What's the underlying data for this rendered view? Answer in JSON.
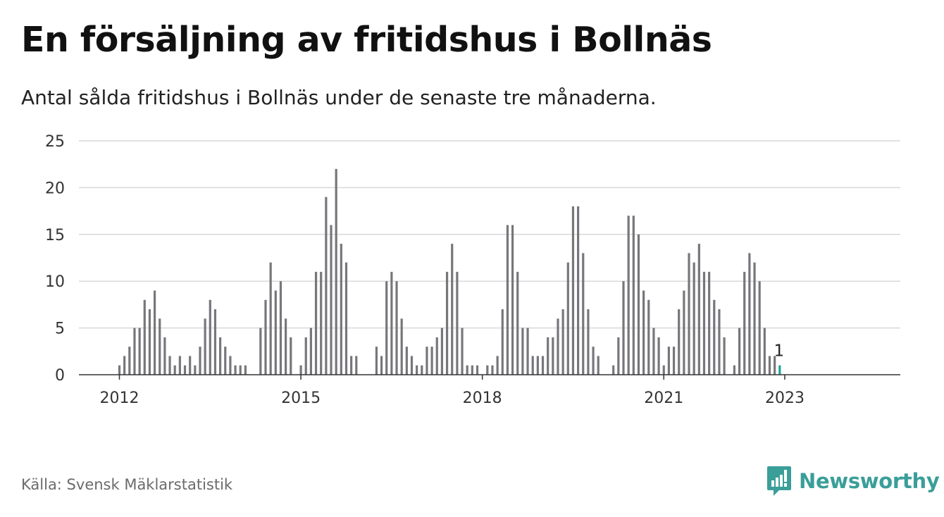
{
  "title": "En försäljning av fritidshus i Bollnäs",
  "subtitle": "Antal sålda fritidshus i Bollnäs under de senaste tre månaderna.",
  "source": "Källa: Svensk Mäklarstatistik",
  "brand": {
    "name": "Newsworthy",
    "icon": "newsworthy-logo-icon",
    "color": "#3a9e99"
  },
  "colors": {
    "bar": "#77767b",
    "highlight": "#1aa39b",
    "grid": "#d9d9d9",
    "axis": "#333333"
  },
  "chart_data": {
    "type": "bar",
    "x_start": "2012-01",
    "frequency": "monthly",
    "ylim": [
      0,
      25
    ],
    "yticks": [
      0,
      5,
      10,
      15,
      20,
      25
    ],
    "xticks": [
      "2012",
      "2015",
      "2018",
      "2021",
      "2023"
    ],
    "values": [
      1,
      2,
      3,
      5,
      5,
      8,
      7,
      9,
      6,
      4,
      2,
      1,
      2,
      1,
      2,
      1,
      3,
      6,
      8,
      7,
      4,
      3,
      2,
      1,
      1,
      1,
      null,
      null,
      5,
      8,
      12,
      9,
      10,
      6,
      4,
      null,
      1,
      4,
      5,
      11,
      11,
      19,
      16,
      22,
      14,
      12,
      2,
      2,
      null,
      null,
      null,
      3,
      2,
      10,
      11,
      10,
      6,
      3,
      2,
      1,
      1,
      3,
      3,
      4,
      5,
      11,
      14,
      11,
      5,
      1,
      1,
      1,
      null,
      1,
      1,
      2,
      7,
      16,
      16,
      11,
      5,
      5,
      2,
      2,
      2,
      4,
      4,
      6,
      7,
      12,
      18,
      18,
      13,
      7,
      3,
      2,
      null,
      null,
      1,
      4,
      10,
      17,
      17,
      15,
      9,
      8,
      5,
      4,
      1,
      3,
      3,
      7,
      9,
      13,
      12,
      14,
      11,
      11,
      8,
      7,
      4,
      null,
      1,
      5,
      11,
      13,
      12,
      10,
      5,
      2,
      2,
      1
    ],
    "highlight_last": true,
    "annotation": "1"
  }
}
